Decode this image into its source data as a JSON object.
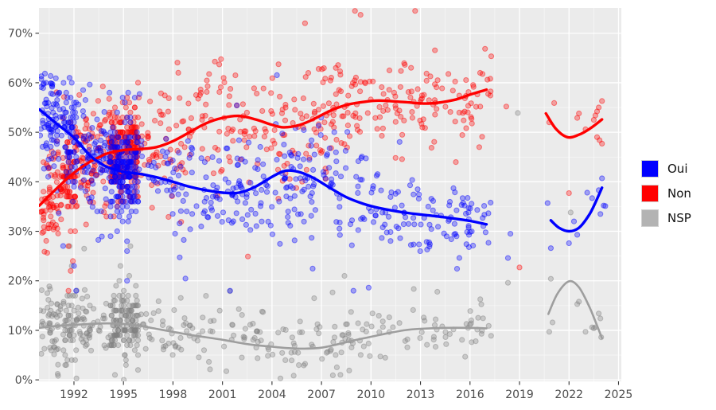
{
  "chart_data": {
    "type": "scatter",
    "title": "",
    "x_axis": {
      "tick_values": [
        1992,
        1995,
        1998,
        2001,
        2004,
        2007,
        2010,
        2013,
        2016,
        2019,
        2022,
        2025
      ],
      "tick_labels": [
        "1992",
        "1995",
        "1998",
        "2001",
        "2004",
        "2007",
        "2010",
        "2013",
        "2016",
        "2019",
        "2022",
        "2025"
      ],
      "domain": [
        1989.88,
        2025.17
      ],
      "minor_interval": 1.5
    },
    "y_axis": {
      "tick_values": [
        0,
        10,
        20,
        30,
        40,
        50,
        60,
        70
      ],
      "tick_labels": [
        "0%",
        "10%",
        "20%",
        "30%",
        "40%",
        "50%",
        "60%",
        "70%"
      ],
      "domain": [
        -0.3,
        75.1
      ],
      "minor_interval": 5
    },
    "panel_background": "#ebebeb",
    "grid_color": "#ffffff",
    "axis_text_color": "#4d4d4d",
    "tick_mark_color": "#333333",
    "legend": {
      "position": "right",
      "entries": [
        {
          "key": "oui",
          "label": "Oui",
          "color": "#0000ff"
        },
        {
          "key": "non",
          "label": "Non",
          "color": "#ff0000"
        },
        {
          "key": "nsp",
          "label": "NSP",
          "color": "#b3b3b3"
        }
      ]
    },
    "series": [
      {
        "key": "nsp",
        "label": "NSP",
        "point_color": "#808080",
        "line_color": "#9e9e9e",
        "clamp": [
          0.3,
          26.5
        ],
        "trend_main": [
          [
            1989.9,
            10.5
          ],
          [
            1991,
            10.9
          ],
          [
            1992,
            11.1
          ],
          [
            1993,
            11.3
          ],
          [
            1994,
            11.4
          ],
          [
            1995,
            11.3
          ],
          [
            1996,
            10.9
          ],
          [
            1997,
            10.3
          ],
          [
            1998,
            9.7
          ],
          [
            1999,
            9.1
          ],
          [
            2000,
            8.6
          ],
          [
            2001,
            8.1
          ],
          [
            2002,
            7.5
          ],
          [
            2003,
            7.0
          ],
          [
            2004,
            6.7
          ],
          [
            2005,
            6.4
          ],
          [
            2006,
            6.3
          ],
          [
            2007,
            6.5
          ],
          [
            2008,
            7.2
          ],
          [
            2009,
            8.0
          ],
          [
            2010,
            8.7
          ],
          [
            2011,
            9.4
          ],
          [
            2012,
            10.0
          ],
          [
            2013,
            10.3
          ],
          [
            2014.5,
            10.5
          ],
          [
            2016,
            10.5
          ],
          [
            2017,
            10.4
          ]
        ],
        "trend_recent": [
          [
            2020.75,
            13.3
          ],
          [
            2021.3,
            17.4
          ],
          [
            2022,
            19.9
          ],
          [
            2022.6,
            18.7
          ],
          [
            2023.2,
            15.0
          ],
          [
            2023.6,
            11.8
          ],
          [
            2024,
            8.4
          ]
        ],
        "recent_points": [
          [
            2020.8,
            9.7
          ],
          [
            2021.0,
            11.6
          ],
          [
            2022.5,
            15.3
          ],
          [
            2022.6,
            15.8
          ],
          [
            2023.0,
            9.7
          ],
          [
            2023.4,
            10.6
          ],
          [
            2023.5,
            10.4
          ],
          [
            2023.6,
            10.6
          ],
          [
            2023.8,
            13.4
          ],
          [
            2023.9,
            12.4
          ],
          [
            2023.95,
            8.6
          ]
        ],
        "stray_points": [
          [
            2018.3,
            19.6
          ],
          [
            2018.9,
            53.9
          ],
          [
            2020.9,
            20.4
          ],
          [
            2022.1,
            33.8
          ]
        ]
      },
      {
        "key": "non",
        "label": "Non",
        "point_color": "#ff0000",
        "line_color": "#ff0000",
        "clamp": [
          18,
          74.5
        ],
        "trend_main": [
          [
            1989.9,
            35.2
          ],
          [
            1991,
            38.8
          ],
          [
            1992,
            41.8
          ],
          [
            1993,
            44.1
          ],
          [
            1993.5,
            44.9
          ],
          [
            1994,
            45.7
          ],
          [
            1995,
            46.4
          ],
          [
            1996,
            46.6
          ],
          [
            1997,
            47.0
          ],
          [
            1998,
            48.2
          ],
          [
            1999,
            50.0
          ],
          [
            2000,
            51.8
          ],
          [
            2001,
            52.9
          ],
          [
            2002,
            53.3
          ],
          [
            2003,
            52.6
          ],
          [
            2004,
            51.5
          ],
          [
            2004.7,
            51.0
          ],
          [
            2005.6,
            51.4
          ],
          [
            2006.5,
            52.6
          ],
          [
            2007.5,
            54.3
          ],
          [
            2008.5,
            55.5
          ],
          [
            2009.5,
            56.1
          ],
          [
            2010.5,
            56.4
          ],
          [
            2012,
            56.1
          ],
          [
            2013.5,
            55.8
          ],
          [
            2015,
            56.5
          ],
          [
            2016,
            57.6
          ],
          [
            2017,
            58.6
          ]
        ],
        "trend_recent": [
          [
            2020.6,
            53.8
          ],
          [
            2021.2,
            50.7
          ],
          [
            2021.9,
            49.0
          ],
          [
            2022.6,
            49.5
          ],
          [
            2023.3,
            50.8
          ],
          [
            2024,
            52.6
          ]
        ],
        "recent_points": [
          [
            2020.8,
            52.0
          ],
          [
            2021.1,
            55.9
          ],
          [
            2022.5,
            52.9
          ],
          [
            2022.6,
            53.8
          ],
          [
            2023.0,
            50.6
          ],
          [
            2023.5,
            52.5
          ],
          [
            2023.6,
            53.4
          ],
          [
            2023.7,
            54.2
          ],
          [
            2023.8,
            55.0
          ],
          [
            2024.0,
            56.3
          ],
          [
            2023.7,
            49.0
          ],
          [
            2023.85,
            48.4
          ],
          [
            2024.0,
            47.7
          ]
        ],
        "stray_points": [
          [
            2018.2,
            55.2
          ],
          [
            2019.0,
            22.7
          ],
          [
            2022.0,
            37.7
          ]
        ]
      },
      {
        "key": "oui",
        "label": "Oui",
        "point_color": "#0000ff",
        "line_color": "#0000ff",
        "clamp": [
          18,
          74.5
        ],
        "trend_main": [
          [
            1989.9,
            54.6
          ],
          [
            1991,
            51.6
          ],
          [
            1992,
            48.9
          ],
          [
            1993,
            45.2
          ],
          [
            1993.5,
            44.0
          ],
          [
            1994,
            43.0
          ],
          [
            1995,
            42.0
          ],
          [
            1996,
            41.6
          ],
          [
            1997,
            40.9
          ],
          [
            1998,
            40.0
          ],
          [
            1999,
            39.0
          ],
          [
            2000,
            38.3
          ],
          [
            2001,
            37.8
          ],
          [
            2002,
            37.8
          ],
          [
            2003,
            39.0
          ],
          [
            2004,
            41.0
          ],
          [
            2004.8,
            42.2
          ],
          [
            2005.6,
            42.0
          ],
          [
            2006.5,
            40.8
          ],
          [
            2007.5,
            38.8
          ],
          [
            2008.5,
            36.9
          ],
          [
            2009.5,
            35.6
          ],
          [
            2010.5,
            34.7
          ],
          [
            2012,
            33.8
          ],
          [
            2013.5,
            33.2
          ],
          [
            2015,
            32.6
          ],
          [
            2016,
            32.1
          ],
          [
            2017,
            31.4
          ]
        ],
        "trend_recent": [
          [
            2020.9,
            32.2
          ],
          [
            2021.4,
            30.7
          ],
          [
            2022,
            30.0
          ],
          [
            2022.6,
            30.7
          ],
          [
            2023.2,
            33.2
          ],
          [
            2023.6,
            35.8
          ],
          [
            2024,
            38.8
          ]
        ],
        "recent_points": [
          [
            2020.7,
            35.7
          ],
          [
            2020.9,
            26.6
          ],
          [
            2022.0,
            27.6
          ],
          [
            2022.3,
            32.0
          ],
          [
            2022.5,
            29.3
          ],
          [
            2023.1,
            37.8
          ],
          [
            2023.4,
            36.7
          ],
          [
            2023.8,
            38.3
          ],
          [
            2023.9,
            33.5
          ],
          [
            2024.0,
            40.7
          ],
          [
            2024.1,
            35.2
          ],
          [
            2024.2,
            35.1
          ]
        ],
        "stray_points": [
          [
            2018.3,
            24.6
          ],
          [
            2018.45,
            29.5
          ]
        ]
      }
    ],
    "scatter_generation": {
      "seed": 11,
      "outlier_prob": 0.13,
      "outlier_mult": 2.1,
      "stack_x_step": 0.0667,
      "stack_y_step": 1,
      "eras": [
        {
          "start": 1989.95,
          "end": 1991.4,
          "stack": false,
          "counts": {
            "oui": 85,
            "non": 85,
            "nsp": 55
          },
          "sd": {
            "oui": 6.0,
            "non": 5.5,
            "nsp": 3.4
          }
        },
        {
          "start": 1991.4,
          "end": 1992.15,
          "stack": true,
          "counts": {
            "oui": 70,
            "non": 70,
            "nsp": 42
          },
          "sd": {
            "oui": 5.2,
            "non": 5.0,
            "nsp": 3.4
          }
        },
        {
          "start": 1992.15,
          "end": 1994.15,
          "stack": false,
          "counts": {
            "oui": 80,
            "non": 80,
            "nsp": 52
          },
          "sd": {
            "oui": 5.0,
            "non": 5.0,
            "nsp": 3.4
          }
        },
        {
          "start": 1994.15,
          "end": 1995.9,
          "stack": true,
          "counts": {
            "oui": 225,
            "non": 225,
            "nsp": 148
          },
          "sd": {
            "oui": 4.6,
            "non": 4.6,
            "nsp": 3.3
          }
        },
        {
          "start": 1995.9,
          "end": 2009.6,
          "stack": false,
          "counts": {
            "oui": 255,
            "non": 255,
            "nsp": 150
          },
          "sd": {
            "oui": 5.3,
            "non": 5.6,
            "nsp": 3.2
          }
        },
        {
          "start": 2009.6,
          "end": 2017.3,
          "stack": false,
          "counts": {
            "oui": 112,
            "non": 112,
            "nsp": 58
          },
          "sd": {
            "oui": 4.0,
            "non": 3.8,
            "nsp": 2.5
          }
        }
      ]
    }
  }
}
